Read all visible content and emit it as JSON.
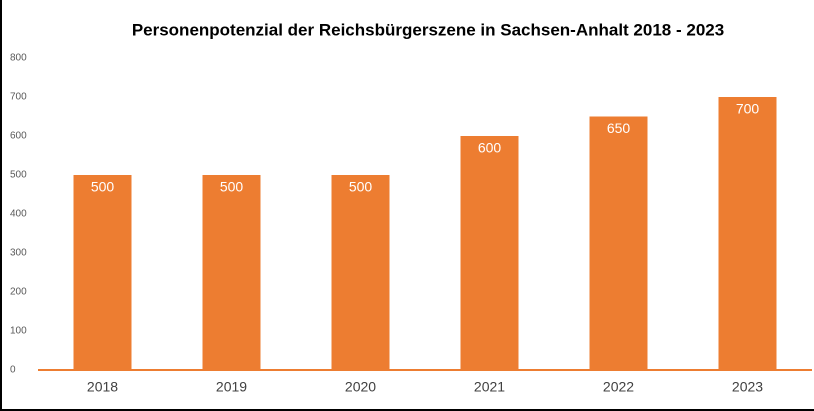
{
  "chart_data": {
    "type": "bar",
    "title": "Personenpotenzial der Reichsbürgerszene in Sachsen-Anhalt 2018 - 2023",
    "categories": [
      "2018",
      "2019",
      "2020",
      "2021",
      "2022",
      "2023"
    ],
    "values": [
      500,
      500,
      500,
      600,
      650,
      700
    ],
    "color": "#ed7d31",
    "ylim": [
      0,
      800
    ],
    "yticks": [
      0,
      100,
      200,
      300,
      400,
      500,
      600,
      700,
      800
    ],
    "grid": false
  }
}
